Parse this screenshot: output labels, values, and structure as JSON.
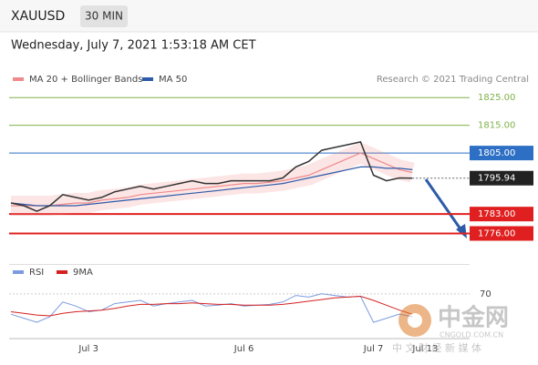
{
  "header": {
    "symbol": "XAUUSD",
    "interval": "30 MIN",
    "timestamp": "Wednesday, July 7, 2021 1:53:18 AM CET"
  },
  "chart_data": {
    "type": "line",
    "credit": "Research © 2021 Trading Central",
    "categories": [
      null,
      null,
      null,
      null,
      null,
      null,
      "Jul 3",
      null,
      null,
      null,
      null,
      null,
      null,
      null,
      null,
      null,
      null,
      null,
      "Jul 6",
      null,
      null,
      null,
      null,
      null,
      null,
      null,
      null,
      null,
      "Jul 7",
      null,
      null,
      null,
      "Jul 13"
    ],
    "values": [
      1787,
      1786,
      1784,
      1786,
      1790,
      1789,
      1788,
      1789,
      1791,
      1792,
      1793,
      1792,
      1793,
      1794,
      1795,
      1794,
      1794,
      1795,
      1795,
      1795,
      1795,
      1796,
      1800,
      1802,
      1806,
      1807,
      1808,
      1809,
      1797,
      1795,
      1796,
      1795.94,
      null
    ],
    "color": "#333333",
    "series": [
      {
        "name": "MA 20 + Bollinger Bands",
        "color": "#f08a8a",
        "values": [
          1786,
          1786,
          1786,
          1786,
          1786.5,
          1787,
          1787,
          1788,
          1788.5,
          1789,
          1790,
          1790.5,
          1791,
          1791.5,
          1792,
          1792.5,
          1793,
          1793.5,
          1794,
          1794,
          1794.5,
          1795,
          1796,
          1797,
          1799,
          1801,
          1803,
          1805,
          1803,
          1801,
          1799,
          1798,
          null
        ]
      },
      {
        "name": "MA 50",
        "color": "#2d5ba8",
        "values": [
          1787,
          1786.5,
          1786,
          1786,
          1786,
          1786,
          1786.5,
          1787,
          1787.5,
          1788,
          1788.5,
          1789,
          1789.5,
          1790,
          1790.5,
          1791,
          1791.5,
          1792,
          1792.5,
          1793,
          1793.5,
          1794,
          1795,
          1796,
          1797,
          1798,
          1799,
          1800,
          1800,
          1799.5,
          1799.5,
          1799,
          null
        ]
      }
    ],
    "ylim": [
      1765,
      1829
    ],
    "levels": [
      {
        "value": 1825,
        "label": "1825.00",
        "color": "#7fb24a"
      },
      {
        "value": 1815,
        "label": "1815.00",
        "color": "#7fb24a"
      },
      {
        "value": 1805,
        "label": "1805.00",
        "color": "#2d6fc4"
      },
      {
        "value": 1783,
        "label": "1783.00",
        "color": "#e02020"
      },
      {
        "value": 1776,
        "label": "1776.00",
        "color": "#e02020"
      }
    ],
    "last_price": 1795.94,
    "rsi": {
      "series": [
        {
          "name": "RSI",
          "color": "#7b9be0",
          "values": [
            45,
            40,
            35,
            42,
            60,
            55,
            48,
            50,
            58,
            60,
            62,
            55,
            58,
            60,
            62,
            55,
            56,
            58,
            55,
            56,
            57,
            60,
            68,
            66,
            70,
            68,
            66,
            67,
            35,
            40,
            45,
            42,
            null
          ]
        },
        {
          "name": "9MA",
          "color": "#d62020",
          "values": [
            48,
            46,
            44,
            43,
            46,
            48,
            49,
            50,
            52,
            55,
            57,
            57,
            58,
            58,
            59,
            58,
            57,
            57,
            56,
            56,
            56,
            57,
            59,
            61,
            63,
            65,
            66,
            67,
            62,
            56,
            50,
            45,
            null
          ]
        }
      ],
      "ylim": [
        15,
        100
      ],
      "yticks": [
        70
      ]
    }
  },
  "watermark": {
    "name": "中金网",
    "site": "CNGOLD.COM.CN",
    "tagline": "中 文 财 经 新 媒 体"
  }
}
